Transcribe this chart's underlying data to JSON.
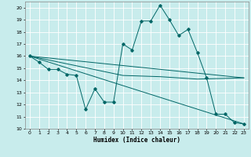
{
  "title": "",
  "xlabel": "Humidex (Indice chaleur)",
  "bg_color": "#c8ecec",
  "grid_color": "#ffffff",
  "line_color": "#006666",
  "xlim": [
    -0.5,
    23.5
  ],
  "ylim": [
    10,
    20.5
  ],
  "yticks": [
    10,
    11,
    12,
    13,
    14,
    15,
    16,
    17,
    18,
    19,
    20
  ],
  "xticks": [
    0,
    1,
    2,
    3,
    4,
    5,
    6,
    7,
    8,
    9,
    10,
    11,
    12,
    13,
    14,
    15,
    16,
    17,
    18,
    19,
    20,
    21,
    22,
    23
  ],
  "series1_x": [
    0,
    1,
    2,
    3,
    4,
    5,
    6,
    7,
    8,
    9,
    10,
    11,
    12,
    13,
    14,
    15,
    16,
    17,
    18,
    19,
    20,
    21,
    22,
    23
  ],
  "series1_y": [
    16.0,
    15.5,
    14.9,
    14.9,
    14.5,
    14.4,
    11.6,
    13.3,
    12.2,
    12.2,
    17.0,
    16.5,
    18.9,
    18.9,
    20.2,
    19.0,
    17.7,
    18.2,
    16.3,
    14.2,
    11.2,
    11.2,
    10.5,
    10.4
  ],
  "series2_x": [
    0,
    23
  ],
  "series2_y": [
    16.0,
    14.2
  ],
  "series3_x": [
    0,
    10,
    14,
    18,
    23
  ],
  "series3_y": [
    16.0,
    14.4,
    14.3,
    14.1,
    14.2
  ],
  "series4_x": [
    0,
    23
  ],
  "series4_y": [
    16.0,
    10.4
  ],
  "marker_size": 1.8,
  "line_width": 0.7,
  "tick_fontsize": 4.5,
  "xlabel_fontsize": 5.5
}
